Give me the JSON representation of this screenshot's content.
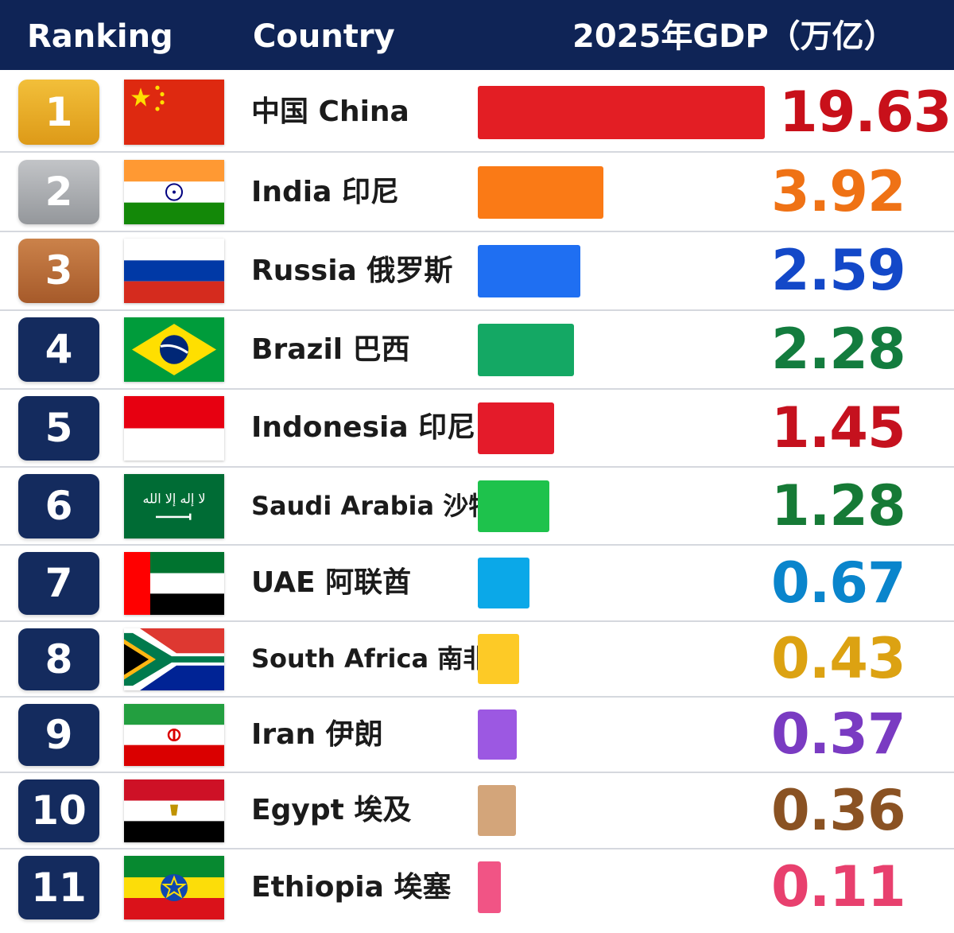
{
  "header": {
    "ranking": "Ranking",
    "country": "Country",
    "gdp": "2025年GDP（万亿）",
    "background": "#0f2456"
  },
  "chart_data": {
    "type": "bar",
    "orientation": "horizontal",
    "value_column_label": "2025年GDP（万亿）",
    "rows": [
      {
        "rank": "1",
        "country": "中国 China",
        "value": 19.63,
        "label": "19.63",
        "color": "#e31e24",
        "text_color": "#c8101a",
        "badge": "#e7a51f",
        "flag": "china-flag"
      },
      {
        "rank": "2",
        "country": "India 印尼",
        "value": 3.92,
        "label": "3.92",
        "color": "#fa7a16",
        "text_color": "#ef7215",
        "badge": "#a3a6aa",
        "flag": "india-flag"
      },
      {
        "rank": "3",
        "country": "Russia 俄罗斯",
        "value": 2.59,
        "label": "2.59",
        "color": "#1f6ff2",
        "text_color": "#1348c8",
        "badge": "#b86c38",
        "flag": "russia-flag"
      },
      {
        "rank": "4",
        "country": "Brazil 巴西",
        "value": 2.28,
        "label": "2.28",
        "color": "#14a864",
        "text_color": "#137c3e",
        "badge": "#142b5e",
        "flag": "brazil-flag"
      },
      {
        "rank": "5",
        "country": "Indonesia 印尼",
        "value": 1.45,
        "label": "1.45",
        "color": "#e41b2a",
        "text_color": "#c5111e",
        "badge": "#142b5e",
        "flag": "indonesia-flag"
      },
      {
        "rank": "6",
        "country": "Saudi Arabia 沙特",
        "value": 1.28,
        "label": "1.28",
        "color": "#1ec24c",
        "text_color": "#167a36",
        "badge": "#142b5e",
        "flag": "saudi-arabia-flag"
      },
      {
        "rank": "7",
        "country": "UAE 阿联酋",
        "value": 0.67,
        "label": "0.67",
        "color": "#0ba8e8",
        "text_color": "#0a85cc",
        "badge": "#142b5e",
        "flag": "uae-flag"
      },
      {
        "rank": "8",
        "country": "South Africa 南非",
        "value": 0.43,
        "label": "0.43",
        "color": "#fdca26",
        "text_color": "#dca212",
        "badge": "#142b5e",
        "flag": "south-africa-flag"
      },
      {
        "rank": "9",
        "country": "Iran 伊朗",
        "value": 0.37,
        "label": "0.37",
        "color": "#9c58e2",
        "text_color": "#7a3bc2",
        "badge": "#142b5e",
        "flag": "iran-flag"
      },
      {
        "rank": "10",
        "country": "Egypt 埃及",
        "value": 0.36,
        "label": "0.36",
        "color": "#d3a57a",
        "text_color": "#8a5223",
        "badge": "#142b5e",
        "flag": "egypt-flag"
      },
      {
        "rank": "11",
        "country": "Ethiopia 埃塞",
        "value": 0.11,
        "label": "0.11",
        "color": "#f15485",
        "text_color": "#e8406e",
        "badge": "#142b5e",
        "flag": "ethiopia-flag"
      }
    ]
  }
}
